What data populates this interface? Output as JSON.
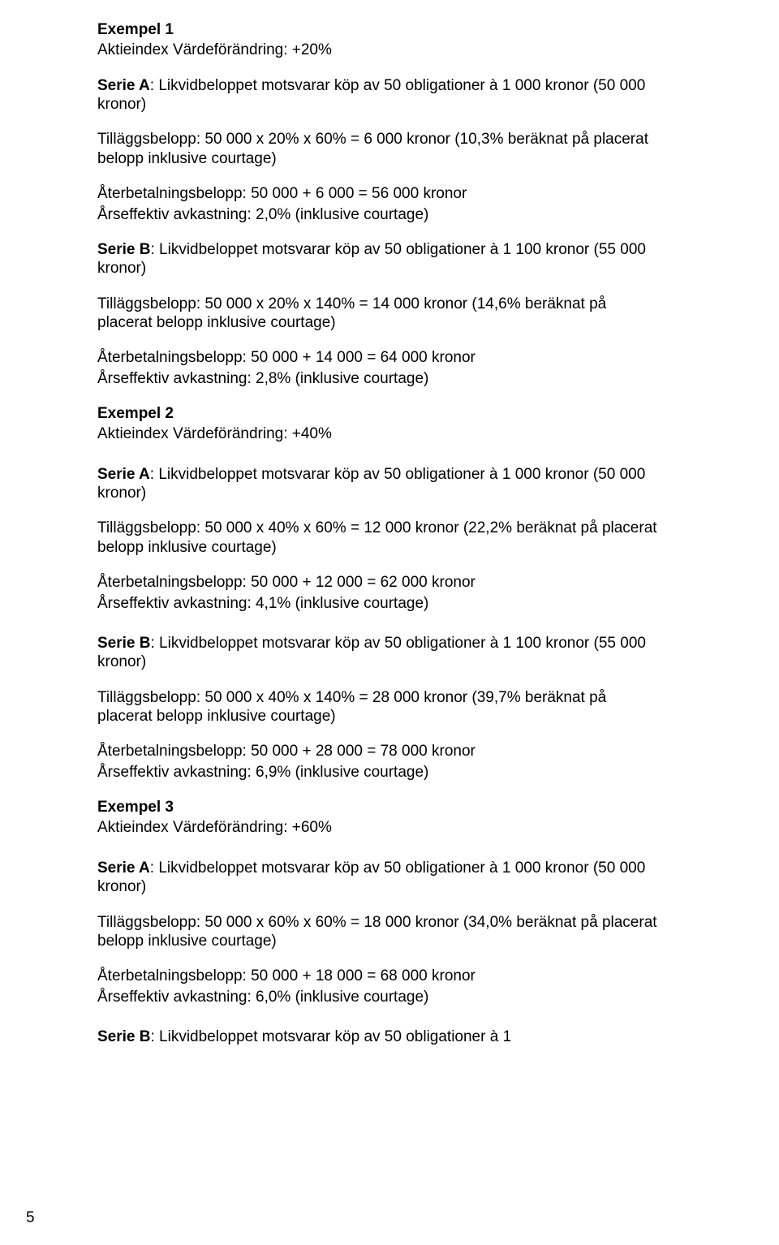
{
  "pageNumber": "5",
  "examples": [
    {
      "title": "Exempel 1",
      "change_line": "Aktieindex Värdeförändring: +20%",
      "series": [
        {
          "label_bold": "Serie A",
          "desc_line": ": Likvidbeloppet motsvarar köp av 50 obligationer à 1 000 kronor (50 000 kronor)",
          "addon": " Tilläggsbelopp: 50 000 x 20% x 60% = 6 000 kronor (10,3% beräknat på placerat belopp inklusive courtage)",
          "repay": "Återbetalningsbelopp: 50 000 + 6 000 = 56 000 kronor",
          "yield": "Årseffektiv avkastning: 2,0% (inklusive courtage)"
        },
        {
          "label_bold": "Serie B",
          "desc_line": ": Likvidbeloppet motsvarar köp av 50 obligationer à 1 100 kronor (55 000 kronor)",
          "addon": " Tilläggsbelopp: 50 000 x 20% x 140% = 14 000 kronor (14,6% beräknat på placerat belopp inklusive courtage)",
          "repay": "Återbetalningsbelopp: 50 000 + 14 000 = 64 000 kronor",
          "yield": "Årseffektiv avkastning: 2,8% (inklusive courtage)"
        }
      ]
    },
    {
      "title": "Exempel 2",
      "change_line": "Aktieindex Värdeförändring: +40%",
      "series": [
        {
          "label_bold": "Serie A",
          "desc_line": ": Likvidbeloppet motsvarar köp av 50 obligationer à 1 000 kronor (50 000 kronor)",
          "addon": " Tilläggsbelopp: 50 000 x 40% x 60% = 12 000 kronor (22,2% beräknat på placerat belopp inklusive courtage)",
          "repay": "Återbetalningsbelopp: 50 000 + 12 000 = 62 000 kronor",
          "yield": "Årseffektiv avkastning: 4,1% (inklusive courtage)"
        },
        {
          "label_bold": "Serie B",
          "desc_line": ": Likvidbeloppet motsvarar köp av 50 obligationer à 1 100 kronor (55 000 kronor)",
          "addon": " Tilläggsbelopp: 50 000 x 40% x 140% = 28 000 kronor (39,7% beräknat på placerat belopp inklusive courtage)",
          "repay": "Återbetalningsbelopp: 50 000 + 28 000 = 78 000 kronor",
          "yield": "Årseffektiv avkastning: 6,9% (inklusive courtage)"
        }
      ]
    },
    {
      "title": "Exempel 3",
      "change_line": "Aktieindex Värdeförändring: +60%",
      "series": [
        {
          "label_bold": " Serie A",
          "desc_line": ": Likvidbeloppet motsvarar köp av 50 obligationer à 1 000 kronor (50 000 kronor)",
          "addon": " Tilläggsbelopp: 50 000 x 60% x 60% = 18 000 kronor (34,0% beräknat på placerat belopp inklusive courtage)",
          "repay": "Återbetalningsbelopp: 50 000 + 18 000 = 68 000 kronor",
          "yield": "Årseffektiv avkastning: 6,0% (inklusive courtage)"
        },
        {
          "label_bold": "Serie B",
          "desc_line": ": Likvidbeloppet motsvarar köp av 50 obligationer à 1",
          "addon": "",
          "repay": "",
          "yield": ""
        }
      ]
    }
  ]
}
